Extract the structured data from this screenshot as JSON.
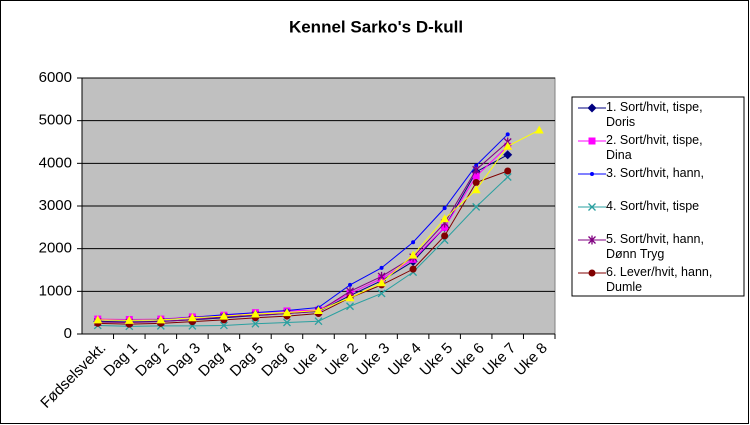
{
  "chart_data": {
    "type": "line",
    "title": "Kennel Sarko's D-kull",
    "categories": [
      "Fødselsvekt.",
      "Dag 1",
      "Dag 2",
      "Dag 3",
      "Dag 4",
      "Dag 5",
      "Dag 6",
      "Uke 1",
      "Uke 2",
      "Uke 3",
      "Uke 4",
      "Uke 5",
      "Uke 6",
      "Uke 7",
      "Uke 8"
    ],
    "ylim": [
      0,
      6000
    ],
    "yticks": [
      0,
      1000,
      2000,
      3000,
      4000,
      5000,
      6000
    ],
    "grid": true,
    "series": [
      {
        "name": "1. Sort/hvit, tispe, Doris",
        "color": "#000080",
        "marker": "diamond",
        "values": [
          300,
          280,
          300,
          330,
          380,
          430,
          480,
          530,
          900,
          1250,
          1700,
          2500,
          3800,
          4200,
          null
        ]
      },
      {
        "name": "2. Sort/hvit, tispe, Dina",
        "color": "#ff00ff",
        "marker": "square",
        "values": [
          350,
          340,
          350,
          400,
          440,
          500,
          540,
          560,
          950,
          1300,
          1750,
          2500,
          3700,
          4400,
          null
        ]
      },
      {
        "name": "3. Sort/hvit, hann,",
        "color": "#0000ff",
        "marker": "dot",
        "values": [
          330,
          320,
          340,
          390,
          450,
          500,
          550,
          620,
          1150,
          1550,
          2150,
          2950,
          3950,
          4680,
          null
        ]
      },
      {
        "name": "4. Sort/hvit, tispe",
        "color": "#2aa0a0",
        "marker": "x",
        "values": [
          200,
          180,
          190,
          190,
          200,
          240,
          270,
          300,
          650,
          950,
          1450,
          2200,
          2980,
          3680,
          null
        ]
      },
      {
        "name": "5. Sort/hvit, hann, Dønn Tryg",
        "color": "#800080",
        "marker": "star",
        "values": [
          280,
          270,
          290,
          340,
          400,
          440,
          480,
          530,
          1000,
          1350,
          1800,
          2600,
          3850,
          4500,
          null
        ]
      },
      {
        "name": "6. Lever/hvit, hann, Dumle",
        "color": "#800000",
        "marker": "circle",
        "values": [
          250,
          230,
          250,
          290,
          330,
          380,
          420,
          480,
          850,
          1150,
          1520,
          2300,
          3550,
          3820,
          null
        ]
      },
      {
        "color": "#ffff00",
        "marker": "triangle",
        "values": [
          330,
          320,
          330,
          380,
          420,
          470,
          500,
          550,
          850,
          1200,
          1850,
          2700,
          3380,
          4400,
          4780
        ]
      }
    ]
  }
}
